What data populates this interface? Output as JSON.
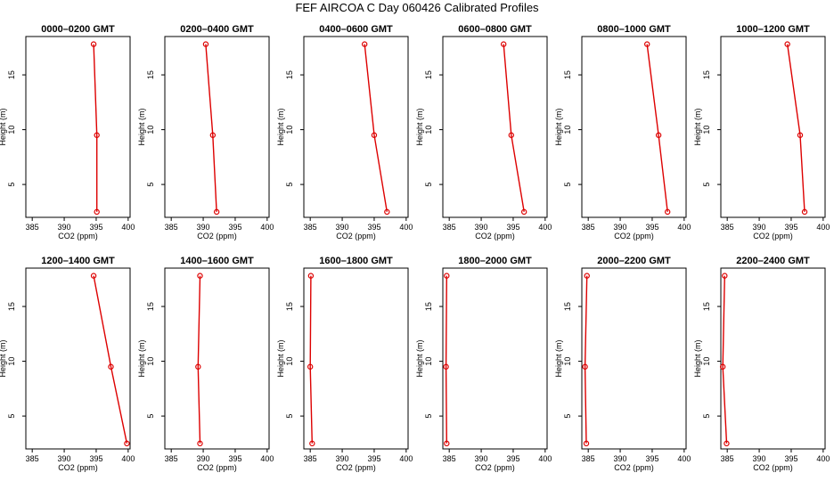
{
  "title": "FEF AIRCOA C  Day 060426  Calibrated Profiles",
  "series_color": "#dd0000",
  "chart_data": [
    {
      "type": "line",
      "title": "0000–0200 GMT",
      "xlabel": "CO2 (ppm)",
      "ylabel": "Height (m)",
      "xlim": [
        384,
        400.3
      ],
      "ylim": [
        2,
        18.5
      ],
      "xticks": [
        385,
        390,
        395,
        400
      ],
      "yticks": [
        5,
        10,
        15
      ],
      "x": [
        394.6,
        395.1,
        395.1
      ],
      "y": [
        17.8,
        9.5,
        2.5
      ]
    },
    {
      "type": "line",
      "title": "0200–0400 GMT",
      "xlabel": "CO2 (ppm)",
      "ylabel": "Height (m)",
      "xlim": [
        384,
        400.3
      ],
      "ylim": [
        2,
        18.5
      ],
      "xticks": [
        385,
        390,
        395,
        400
      ],
      "yticks": [
        5,
        10,
        15
      ],
      "x": [
        390.4,
        391.5,
        392.1
      ],
      "y": [
        17.8,
        9.5,
        2.5
      ]
    },
    {
      "type": "line",
      "title": "0400–0600 GMT",
      "xlabel": "CO2 (ppm)",
      "ylabel": "Height (m)",
      "xlim": [
        384,
        400.3
      ],
      "ylim": [
        2,
        18.5
      ],
      "xticks": [
        385,
        390,
        395,
        400
      ],
      "yticks": [
        5,
        10,
        15
      ],
      "x": [
        393.5,
        395.0,
        397.0
      ],
      "y": [
        17.8,
        9.5,
        2.5
      ]
    },
    {
      "type": "line",
      "title": "0600–0800 GMT",
      "xlabel": "CO2 (ppm)",
      "ylabel": "Height (m)",
      "xlim": [
        384,
        400.3
      ],
      "ylim": [
        2,
        18.5
      ],
      "xticks": [
        385,
        390,
        395,
        400
      ],
      "yticks": [
        5,
        10,
        15
      ],
      "x": [
        393.5,
        394.7,
        396.7
      ],
      "y": [
        17.8,
        9.5,
        2.5
      ]
    },
    {
      "type": "line",
      "title": "0800–1000 GMT",
      "xlabel": "CO2 (ppm)",
      "ylabel": "Height (m)",
      "xlim": [
        384,
        400.3
      ],
      "ylim": [
        2,
        18.5
      ],
      "xticks": [
        385,
        390,
        395,
        400
      ],
      "yticks": [
        5,
        10,
        15
      ],
      "x": [
        394.2,
        396.0,
        397.4
      ],
      "y": [
        17.8,
        9.5,
        2.5
      ]
    },
    {
      "type": "line",
      "title": "1000–1200 GMT",
      "xlabel": "CO2 (ppm)",
      "ylabel": "Height (m)",
      "xlim": [
        384,
        400.3
      ],
      "ylim": [
        2,
        18.5
      ],
      "xticks": [
        385,
        390,
        395,
        400
      ],
      "yticks": [
        5,
        10,
        15
      ],
      "x": [
        394.4,
        396.4,
        397.1
      ],
      "y": [
        17.8,
        9.5,
        2.5
      ]
    },
    {
      "type": "line",
      "title": "1200–1400 GMT",
      "xlabel": "CO2 (ppm)",
      "ylabel": "Height (m)",
      "xlim": [
        384,
        400.3
      ],
      "ylim": [
        2,
        18.5
      ],
      "xticks": [
        385,
        390,
        395,
        400
      ],
      "yticks": [
        5,
        10,
        15
      ],
      "x": [
        394.6,
        397.3,
        399.8
      ],
      "y": [
        17.8,
        9.5,
        2.5
      ]
    },
    {
      "type": "line",
      "title": "1400–1600 GMT",
      "xlabel": "CO2 (ppm)",
      "ylabel": "Height (m)",
      "xlim": [
        384,
        400.3
      ],
      "ylim": [
        2,
        18.5
      ],
      "xticks": [
        385,
        390,
        395,
        400
      ],
      "yticks": [
        5,
        10,
        15
      ],
      "x": [
        389.5,
        389.2,
        389.5
      ],
      "y": [
        17.8,
        9.5,
        2.5
      ]
    },
    {
      "type": "line",
      "title": "1600–1800 GMT",
      "xlabel": "CO2 (ppm)",
      "ylabel": "Height (m)",
      "xlim": [
        384,
        400.3
      ],
      "ylim": [
        2,
        18.5
      ],
      "xticks": [
        385,
        390,
        395,
        400
      ],
      "yticks": [
        5,
        10,
        15
      ],
      "x": [
        385.1,
        385.0,
        385.3
      ],
      "y": [
        17.8,
        9.5,
        2.5
      ]
    },
    {
      "type": "line",
      "title": "1800–2000 GMT",
      "xlabel": "CO2 (ppm)",
      "ylabel": "Height (m)",
      "xlim": [
        384,
        400.3
      ],
      "ylim": [
        2,
        18.5
      ],
      "xticks": [
        385,
        390,
        395,
        400
      ],
      "yticks": [
        5,
        10,
        15
      ],
      "x": [
        384.6,
        384.5,
        384.6
      ],
      "y": [
        17.8,
        9.5,
        2.5
      ]
    },
    {
      "type": "line",
      "title": "2000–2200 GMT",
      "xlabel": "CO2 (ppm)",
      "ylabel": "Height (m)",
      "xlim": [
        384,
        400.3
      ],
      "ylim": [
        2,
        18.5
      ],
      "xticks": [
        385,
        390,
        395,
        400
      ],
      "yticks": [
        5,
        10,
        15
      ],
      "x": [
        384.8,
        384.5,
        384.7
      ],
      "y": [
        17.8,
        9.5,
        2.5
      ]
    },
    {
      "type": "line",
      "title": "2200–2400 GMT",
      "xlabel": "CO2 (ppm)",
      "ylabel": "Height (m)",
      "xlim": [
        384,
        400.3
      ],
      "ylim": [
        2,
        18.5
      ],
      "xticks": [
        385,
        390,
        395,
        400
      ],
      "yticks": [
        5,
        10,
        15
      ],
      "x": [
        384.6,
        384.3,
        384.9
      ],
      "y": [
        17.8,
        9.5,
        2.5
      ]
    }
  ]
}
